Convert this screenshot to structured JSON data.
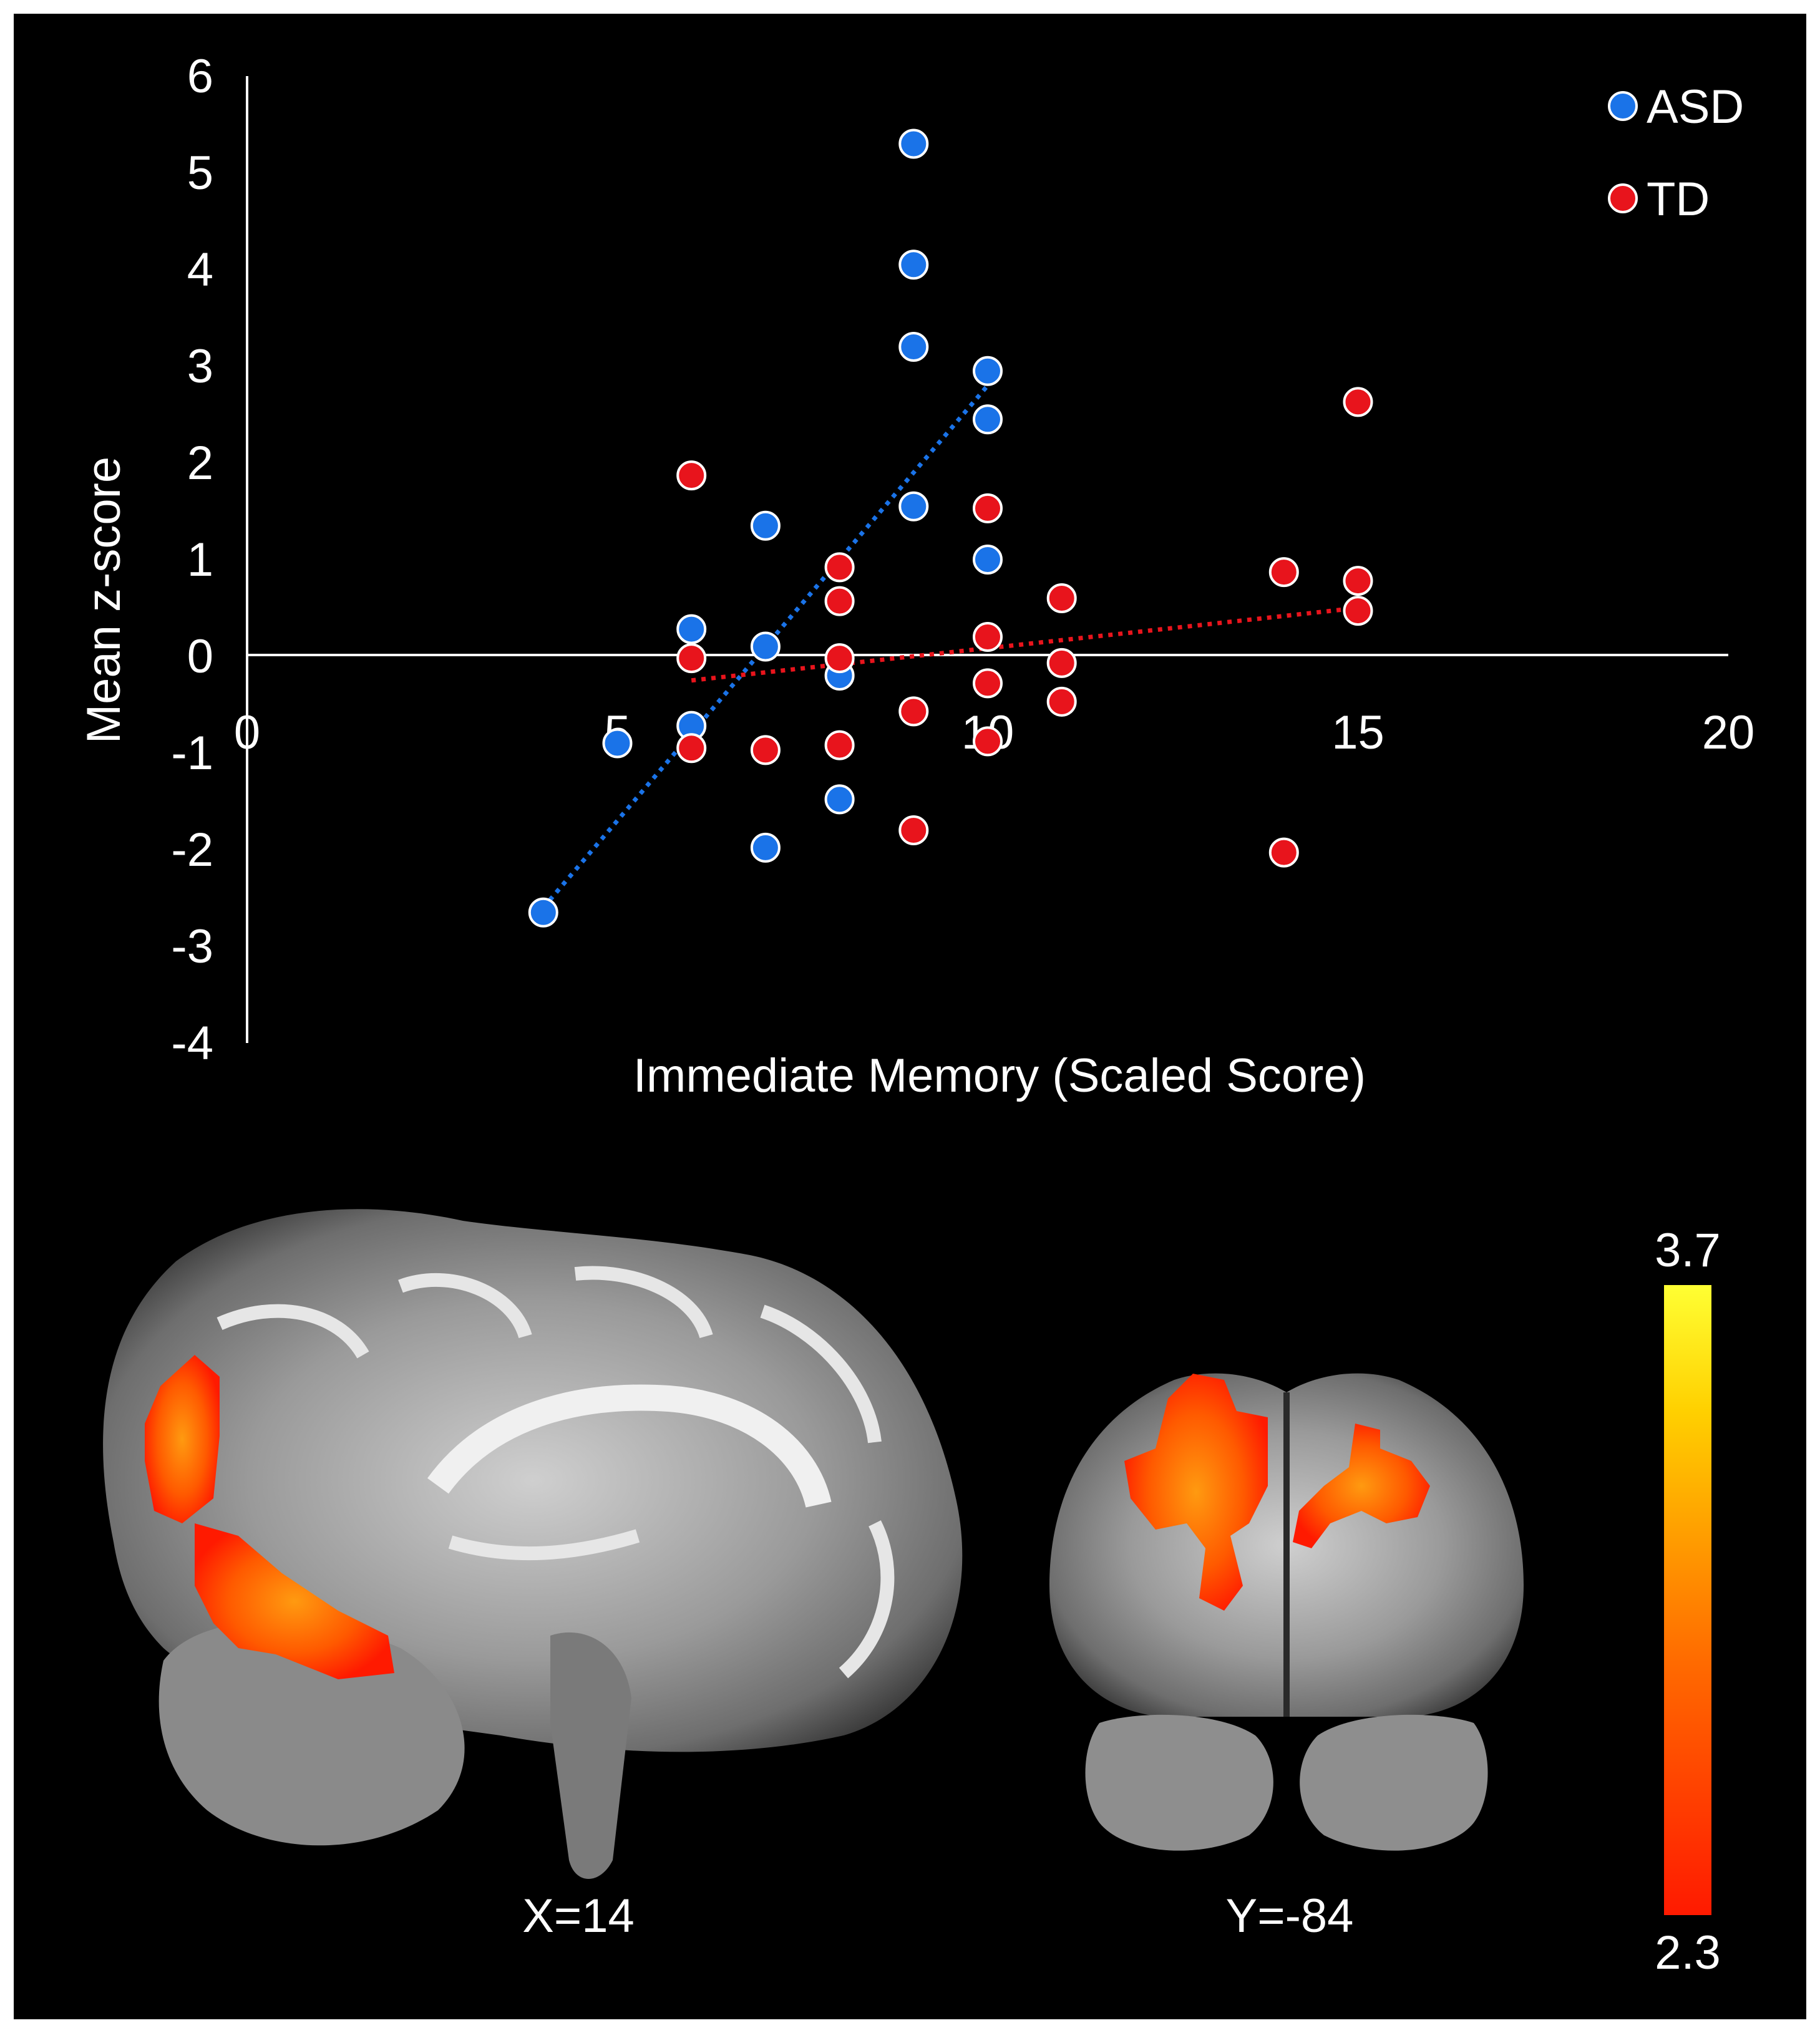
{
  "chart_data": {
    "type": "scatter",
    "xlabel": "Immediate Memory (Scaled Score)",
    "ylabel": "Mean z-score",
    "xlim": [
      0,
      20
    ],
    "ylim": [
      -4,
      6
    ],
    "x_ticks": [
      "0",
      "5",
      "10",
      "15",
      "20"
    ],
    "y_ticks": [
      "6",
      "5",
      "4",
      "3",
      "2",
      "1",
      "0",
      "-1",
      "-2",
      "-3",
      "-4"
    ],
    "grid": false,
    "legend_position": "top-right",
    "series": [
      {
        "name": "ASD",
        "color": "#1a73e8",
        "trendline": "linear",
        "points": [
          [
            4,
            -2.65
          ],
          [
            5,
            -0.9
          ],
          [
            6,
            0.28
          ],
          [
            6,
            -0.72
          ],
          [
            7,
            1.35
          ],
          [
            7,
            0.1
          ],
          [
            7,
            -1.98
          ],
          [
            8,
            -0.2
          ],
          [
            8,
            -1.48
          ],
          [
            9,
            5.3
          ],
          [
            9,
            4.05
          ],
          [
            9,
            3.2
          ],
          [
            9,
            1.55
          ],
          [
            10,
            2.95
          ],
          [
            10,
            2.45
          ],
          [
            10,
            1.0
          ]
        ]
      },
      {
        "name": "TD",
        "color": "#e8141c",
        "trendline": "linear",
        "points": [
          [
            6,
            1.87
          ],
          [
            6,
            -0.02
          ],
          [
            6,
            -0.95
          ],
          [
            7,
            -0.97
          ],
          [
            8,
            0.92
          ],
          [
            8,
            0.57
          ],
          [
            8,
            -0.02
          ],
          [
            8,
            -0.92
          ],
          [
            9,
            -0.57
          ],
          [
            9,
            -1.8
          ],
          [
            10,
            1.53
          ],
          [
            10,
            0.2
          ],
          [
            10,
            -0.28
          ],
          [
            10,
            -0.88
          ],
          [
            11,
            0.6
          ],
          [
            11,
            -0.07
          ],
          [
            11,
            -0.47
          ],
          [
            14,
            0.87
          ],
          [
            14,
            -2.03
          ],
          [
            15,
            2.63
          ],
          [
            15,
            0.78
          ],
          [
            15,
            0.47
          ]
        ]
      }
    ],
    "trendlines": [
      {
        "series": "ASD",
        "x": [
          4,
          10
        ],
        "y": [
          -2.6,
          2.8
        ]
      },
      {
        "series": "TD",
        "x": [
          6,
          15
        ],
        "y": [
          -0.25,
          0.5
        ]
      }
    ]
  },
  "brain_panel": {
    "sagittal_label": "X=14",
    "coronal_label": "Y=-84",
    "colorbar": {
      "max_label": "3.7",
      "min_label": "2.3",
      "colors": [
        "#ff1a00",
        "#ff6a00",
        "#ffd000",
        "#ffff33"
      ]
    }
  }
}
